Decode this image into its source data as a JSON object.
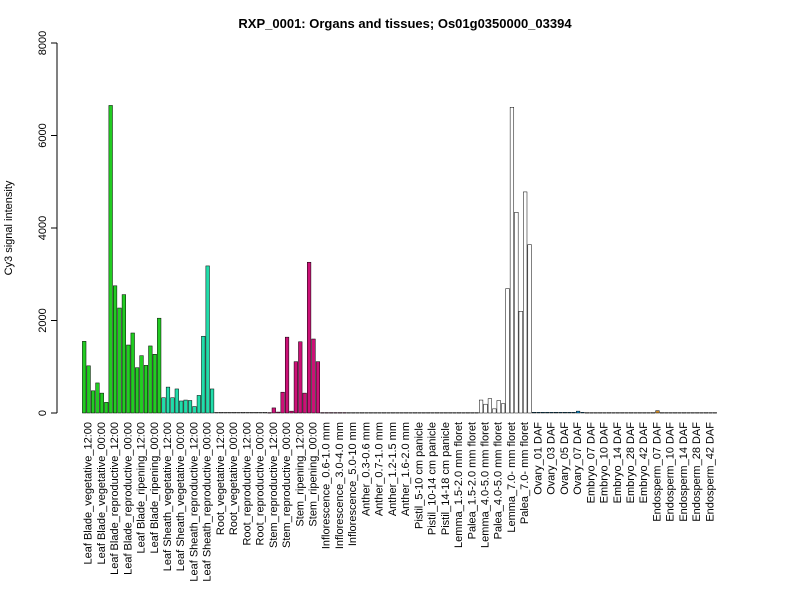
{
  "chart_data": {
    "type": "bar",
    "title": "RXP_0001: Organs and tissues; Os01g0350000_03394",
    "ylabel": "Cy3 signal intensity",
    "xlabel": "",
    "ylim": [
      0,
      8000
    ],
    "yticks": [
      0,
      2000,
      4000,
      6000,
      8000
    ],
    "grid": false,
    "category_labels": [
      "Leaf Blade_vegetative_12:00",
      "Leaf Blade_vegetative_00:00",
      "Leaf Blade_reproductive_12:00",
      "Leaf Blade_reproductive_00:00",
      "Leaf Blade_ripening_12:00",
      "Leaf Blade_ripening_00:00",
      "Leaf Sheath_vegetative_12:00",
      "Leaf Sheath_vegetative_00:00",
      "Leaf Sheath_reproductive_12:00",
      "Leaf Sheath_reproductive_00:00",
      "Root_vegetative_12:00",
      "Root_vegetative_00:00",
      "Root_reproductive_12:00",
      "Root_reproductive_00:00",
      "Stem_reproductive_12:00",
      "Stem_reproductive_00:00",
      "Stem_ripening_12:00",
      "Stem_ripening_00:00",
      "Inflorescence_0.6-1.0 mm",
      "Inflorescence_3.0-4.0 mm",
      "Inflorescence_5.0-10 mm",
      "Anther_0.3-0.6 mm",
      "Anther_0.7-1.0 mm",
      "Anther_1.2-1.5 mm",
      "Anther_1.6-2.0 mm",
      "Pistil_5-10 cm panicle",
      "Pistil_10-14 cm panicle",
      "Pistil_14-18 cm panicle",
      "Lemma_1.5-2.0 mm floret",
      "Palea_1.5-2.0 mm floret",
      "Lemma_4.0-5.0 mm floret",
      "Palea_4.0-5.0 mm floret",
      "Lemma_7.0- mm floret",
      "Palea_7.0- mm floret",
      "Ovary_01 DAF",
      "Ovary_03 DAF",
      "Ovary_05 DAF",
      "Ovary_07 DAF",
      "Embryo_07 DAF",
      "Embryo_10 DAF",
      "Embryo_14 DAF",
      "Embryo_28 DAF",
      "Embryo_42 DAF",
      "Endosperm_07 DAF",
      "Endosperm_10 DAF",
      "Endosperm_14 DAF",
      "Endosperm_28 DAF",
      "Endosperm_42 DAF"
    ],
    "series": [
      {
        "colors_by_group": {
          "leaf_blade": "#22cc22",
          "leaf_sheath": "#22ddaa",
          "root": "#ffffff",
          "stem": "#cc1177",
          "inflorescence_to_palea": "#ffffff",
          "lemma_palea_blue": "#1199dd",
          "ovary_embryo_endosperm": "#ffffff",
          "embryo_42_accent": "#cc8822"
        },
        "values": [
          1550,
          1020,
          480,
          650,
          430,
          230,
          6650,
          2750,
          2270,
          2560,
          1470,
          1730,
          980,
          1240,
          1030,
          1450,
          1270,
          2050,
          330,
          560,
          330,
          520,
          260,
          280,
          270,
          140,
          380,
          1660,
          3180,
          520,
          15,
          15,
          15,
          15,
          15,
          15,
          15,
          15,
          15,
          15,
          15,
          15,
          10,
          110,
          20,
          450,
          1640,
          40,
          1110,
          1540,
          430,
          3260,
          1600,
          1110,
          10,
          10,
          10,
          10,
          10,
          10,
          10,
          10,
          10,
          10,
          10,
          10,
          10,
          10,
          10,
          10,
          10,
          10,
          10,
          10,
          10,
          10,
          10,
          10,
          10,
          10,
          10,
          10,
          10,
          10,
          10,
          10,
          10,
          10,
          10,
          10,
          280,
          190,
          310,
          90,
          270,
          200,
          2690,
          6610,
          4340,
          2200,
          4780,
          3640,
          15,
          15,
          15,
          15,
          15,
          15,
          15,
          15,
          15,
          15,
          40,
          15,
          10,
          10,
          10,
          10,
          10,
          10,
          10,
          10,
          10,
          10,
          10,
          10,
          10,
          10,
          10,
          10,
          50,
          10,
          10,
          10,
          10,
          10,
          10,
          10,
          10,
          10,
          10,
          10,
          10,
          10
        ]
      }
    ]
  }
}
